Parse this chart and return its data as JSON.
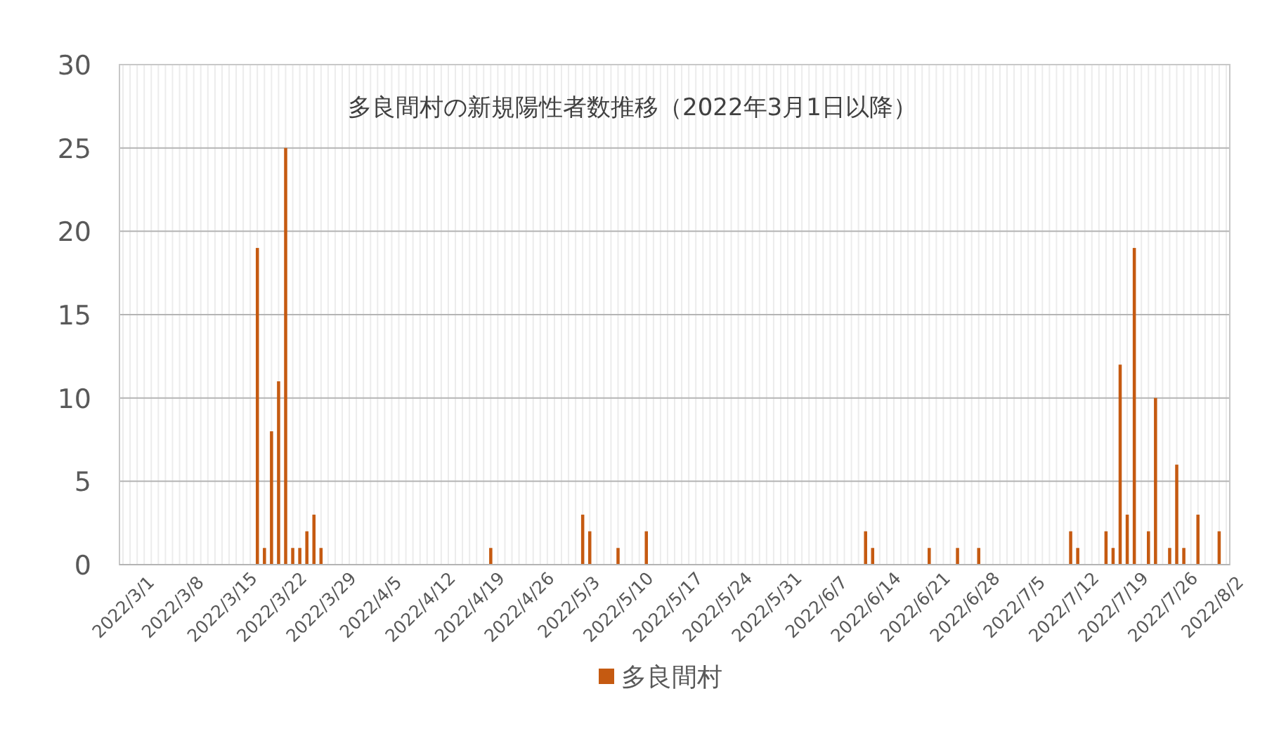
{
  "chart_data": {
    "type": "bar",
    "title": "多良間村の新規陽性者数推移（2022年3月1日以降）",
    "categories": [
      "2022/3/1",
      null,
      null,
      null,
      null,
      null,
      null,
      "2022/3/8",
      null,
      null,
      null,
      null,
      null,
      null,
      "2022/3/15",
      null,
      null,
      null,
      null,
      null,
      null,
      "2022/3/22",
      null,
      null,
      null,
      null,
      null,
      null,
      "2022/3/29",
      null,
      null,
      null,
      null,
      null,
      null,
      "2022/4/5",
      null,
      null,
      null,
      null,
      null,
      null,
      "2022/4/12",
      null,
      null,
      null,
      null,
      null,
      null,
      "2022/4/19",
      null,
      null,
      null,
      null,
      null,
      null,
      "2022/4/26",
      null,
      null,
      null,
      null,
      null,
      null,
      "2022/5/3",
      null,
      null,
      null,
      null,
      null,
      null,
      "2022/5/10",
      null,
      null,
      null,
      null,
      null,
      null,
      "2022/5/17",
      null,
      null,
      null,
      null,
      null,
      null,
      "2022/5/24",
      null,
      null,
      null,
      null,
      null,
      null,
      "2022/5/31",
      null,
      null,
      null,
      null,
      null,
      null,
      "2022/6/7",
      null,
      null,
      null,
      null,
      null,
      null,
      "2022/6/14",
      null,
      null,
      null,
      null,
      null,
      null,
      "2022/6/21",
      null,
      null,
      null,
      null,
      null,
      null,
      "2022/6/28",
      null,
      null,
      null,
      null,
      null,
      null,
      "2022/7/5",
      null,
      null,
      null,
      null,
      null,
      null,
      "2022/7/12",
      null,
      null,
      null,
      null,
      null,
      null,
      "2022/7/19",
      null,
      null,
      null,
      null,
      null,
      null,
      "2022/7/26",
      null,
      null,
      null,
      null,
      null,
      null,
      "2022/8/2",
      null,
      null
    ],
    "series": [
      {
        "name": "多良間村",
        "color": "#c55a11",
        "values": [
          0,
          0,
          0,
          0,
          0,
          0,
          0,
          0,
          0,
          0,
          0,
          0,
          0,
          0,
          0,
          0,
          0,
          0,
          0,
          19,
          1,
          8,
          11,
          25,
          1,
          1,
          2,
          3,
          1,
          0,
          0,
          0,
          0,
          0,
          0,
          0,
          0,
          0,
          0,
          0,
          0,
          0,
          0,
          0,
          0,
          0,
          0,
          0,
          0,
          0,
          0,
          0,
          1,
          0,
          0,
          0,
          0,
          0,
          0,
          0,
          0,
          0,
          0,
          0,
          0,
          3,
          2,
          0,
          0,
          0,
          1,
          0,
          0,
          0,
          2,
          0,
          0,
          0,
          0,
          0,
          0,
          0,
          0,
          0,
          0,
          0,
          0,
          0,
          0,
          0,
          0,
          0,
          0,
          0,
          0,
          0,
          0,
          0,
          0,
          0,
          0,
          0,
          0,
          0,
          0,
          2,
          1,
          0,
          0,
          0,
          0,
          0,
          0,
          0,
          1,
          0,
          0,
          0,
          1,
          0,
          0,
          1,
          0,
          0,
          0,
          0,
          0,
          0,
          0,
          0,
          0,
          0,
          0,
          0,
          2,
          1,
          0,
          0,
          0,
          2,
          1,
          12,
          3,
          19,
          0,
          2,
          10,
          0,
          1,
          6,
          1,
          0,
          3,
          0,
          0,
          2,
          0
        ]
      }
    ],
    "ylim": [
      0,
      30
    ],
    "yticks": [
      0,
      5,
      10,
      15,
      20,
      25,
      30
    ],
    "grid": true,
    "legend": "bottom"
  }
}
